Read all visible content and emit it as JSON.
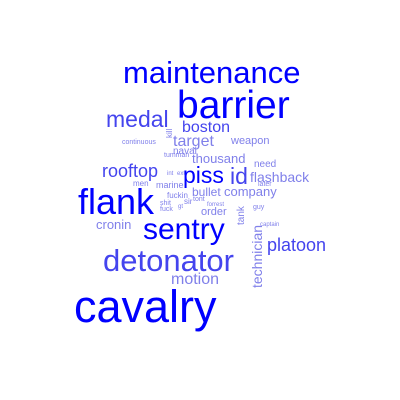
{
  "colors": {
    "strong": "#0000ff",
    "medium": "#4444ee",
    "light": "#8080ea"
  },
  "words": [
    {
      "text": "maintenance"
    },
    {
      "text": "barrier"
    },
    {
      "text": "medal"
    },
    {
      "text": "boston"
    },
    {
      "text": "kill"
    },
    {
      "text": "target"
    },
    {
      "text": "weapon"
    },
    {
      "text": "continuous"
    },
    {
      "text": "naval"
    },
    {
      "text": "tumman"
    },
    {
      "text": "thousand"
    },
    {
      "text": "rooftop"
    },
    {
      "text": "piss"
    },
    {
      "text": "id"
    },
    {
      "text": "need"
    },
    {
      "text": "flashback"
    },
    {
      "text": "men"
    },
    {
      "text": "marine"
    },
    {
      "text": "int"
    },
    {
      "text": "ext"
    },
    {
      "text": "later"
    },
    {
      "text": "company"
    },
    {
      "text": "flank"
    },
    {
      "text": "bullet"
    },
    {
      "text": "fuckin"
    },
    {
      "text": "shit"
    },
    {
      "text": "sir"
    },
    {
      "text": "tont"
    },
    {
      "text": "fuck"
    },
    {
      "text": "gt"
    },
    {
      "text": "forrest"
    },
    {
      "text": "guy"
    },
    {
      "text": "order"
    },
    {
      "text": "sentry"
    },
    {
      "text": "tank"
    },
    {
      "text": "cronin"
    },
    {
      "text": "captain"
    },
    {
      "text": "technician"
    },
    {
      "text": "platoon"
    },
    {
      "text": "detonator"
    },
    {
      "text": "motion"
    },
    {
      "text": "cavalry"
    }
  ]
}
